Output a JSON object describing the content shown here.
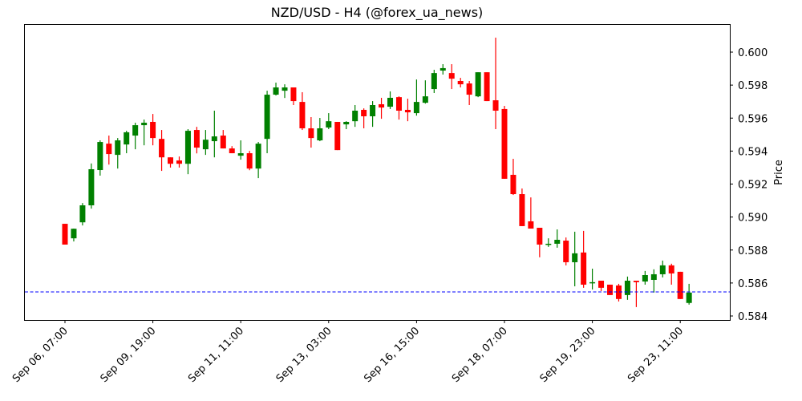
{
  "chart_data": {
    "type": "candlestick",
    "title": "NZD/USD - H4 (@forex_ua_news)",
    "xlabel": "",
    "ylabel": "Price",
    "ylim": [
      0.58368,
      0.60173
    ],
    "y_ticks": [
      "0.584",
      "0.586",
      "0.588",
      "0.590",
      "0.592",
      "0.594",
      "0.596",
      "0.598",
      "0.600"
    ],
    "x_ticks": [
      {
        "index": 0,
        "label": "Sep 06, 07:00"
      },
      {
        "index": 10,
        "label": "Sep 09, 19:00"
      },
      {
        "index": 20,
        "label": "Sep 11, 11:00"
      },
      {
        "index": 30,
        "label": "Sep 13, 03:00"
      },
      {
        "index": 40,
        "label": "Sep 16, 15:00"
      },
      {
        "index": 50,
        "label": "Sep 18, 07:00"
      },
      {
        "index": 60,
        "label": "Sep 19, 23:00"
      },
      {
        "index": 70,
        "label": "Sep 23, 11:00"
      }
    ],
    "grid": false,
    "legend": null,
    "up_color": "#008000",
    "down_color": "#ff0000",
    "hline": {
      "value": 0.58546,
      "color": "#0000ff",
      "style": "dashed"
    },
    "candles": [
      {
        "o": 0.58959,
        "h": 0.58959,
        "l": 0.58833,
        "c": 0.58833
      },
      {
        "o": 0.58871,
        "h": 0.5893,
        "l": 0.58852,
        "c": 0.58929
      },
      {
        "o": 0.58968,
        "h": 0.59085,
        "l": 0.58949,
        "c": 0.59071
      },
      {
        "o": 0.59071,
        "h": 0.59325,
        "l": 0.59051,
        "c": 0.5929
      },
      {
        "o": 0.59285,
        "h": 0.59465,
        "l": 0.59251,
        "c": 0.59455
      },
      {
        "o": 0.59445,
        "h": 0.59494,
        "l": 0.59318,
        "c": 0.59382
      },
      {
        "o": 0.59377,
        "h": 0.59479,
        "l": 0.59294,
        "c": 0.59465
      },
      {
        "o": 0.5944,
        "h": 0.59523,
        "l": 0.59387,
        "c": 0.59514
      },
      {
        "o": 0.59494,
        "h": 0.59572,
        "l": 0.59411,
        "c": 0.59557
      },
      {
        "o": 0.59557,
        "h": 0.59591,
        "l": 0.59435,
        "c": 0.59572
      },
      {
        "o": 0.59577,
        "h": 0.59625,
        "l": 0.59435,
        "c": 0.59479
      },
      {
        "o": 0.59474,
        "h": 0.59528,
        "l": 0.5928,
        "c": 0.59362
      },
      {
        "o": 0.59362,
        "h": 0.59362,
        "l": 0.593,
        "c": 0.59323
      },
      {
        "o": 0.59343,
        "h": 0.59367,
        "l": 0.593,
        "c": 0.59323
      },
      {
        "o": 0.59323,
        "h": 0.59533,
        "l": 0.5926,
        "c": 0.59523
      },
      {
        "o": 0.59528,
        "h": 0.59547,
        "l": 0.59386,
        "c": 0.59421
      },
      {
        "o": 0.59411,
        "h": 0.59528,
        "l": 0.59377,
        "c": 0.59469
      },
      {
        "o": 0.5946,
        "h": 0.59645,
        "l": 0.59362,
        "c": 0.59489
      },
      {
        "o": 0.59494,
        "h": 0.59528,
        "l": 0.59416,
        "c": 0.59416
      },
      {
        "o": 0.59416,
        "h": 0.5943,
        "l": 0.59387,
        "c": 0.59387
      },
      {
        "o": 0.59372,
        "h": 0.59465,
        "l": 0.59348,
        "c": 0.59387
      },
      {
        "o": 0.59387,
        "h": 0.59401,
        "l": 0.59284,
        "c": 0.59294
      },
      {
        "o": 0.59294,
        "h": 0.59455,
        "l": 0.59236,
        "c": 0.59445
      },
      {
        "o": 0.59474,
        "h": 0.59766,
        "l": 0.59387,
        "c": 0.59742
      },
      {
        "o": 0.59742,
        "h": 0.59815,
        "l": 0.59737,
        "c": 0.59786
      },
      {
        "o": 0.59766,
        "h": 0.59805,
        "l": 0.59722,
        "c": 0.59786
      },
      {
        "o": 0.59786,
        "h": 0.59786,
        "l": 0.59679,
        "c": 0.59703
      },
      {
        "o": 0.59698,
        "h": 0.59757,
        "l": 0.59528,
        "c": 0.59538
      },
      {
        "o": 0.59538,
        "h": 0.59606,
        "l": 0.59421,
        "c": 0.59479
      },
      {
        "o": 0.59465,
        "h": 0.59601,
        "l": 0.5946,
        "c": 0.59538
      },
      {
        "o": 0.59543,
        "h": 0.5963,
        "l": 0.59533,
        "c": 0.59581
      },
      {
        "o": 0.59577,
        "h": 0.59577,
        "l": 0.59406,
        "c": 0.59406
      },
      {
        "o": 0.59562,
        "h": 0.59581,
        "l": 0.59533,
        "c": 0.59577
      },
      {
        "o": 0.59581,
        "h": 0.59679,
        "l": 0.59547,
        "c": 0.59645
      },
      {
        "o": 0.5965,
        "h": 0.59659,
        "l": 0.59538,
        "c": 0.59611
      },
      {
        "o": 0.59611,
        "h": 0.59703,
        "l": 0.59547,
        "c": 0.59679
      },
      {
        "o": 0.59684,
        "h": 0.59723,
        "l": 0.59596,
        "c": 0.59664
      },
      {
        "o": 0.59669,
        "h": 0.59762,
        "l": 0.59655,
        "c": 0.59723
      },
      {
        "o": 0.59727,
        "h": 0.59732,
        "l": 0.59591,
        "c": 0.59645
      },
      {
        "o": 0.5965,
        "h": 0.59718,
        "l": 0.59581,
        "c": 0.59635
      },
      {
        "o": 0.5963,
        "h": 0.59834,
        "l": 0.59615,
        "c": 0.59698
      },
      {
        "o": 0.59693,
        "h": 0.59829,
        "l": 0.59688,
        "c": 0.59732
      },
      {
        "o": 0.59776,
        "h": 0.59893,
        "l": 0.59752,
        "c": 0.59873
      },
      {
        "o": 0.59888,
        "h": 0.59927,
        "l": 0.59864,
        "c": 0.59903
      },
      {
        "o": 0.59873,
        "h": 0.59927,
        "l": 0.59776,
        "c": 0.59839
      },
      {
        "o": 0.59825,
        "h": 0.59844,
        "l": 0.59786,
        "c": 0.59805
      },
      {
        "o": 0.5981,
        "h": 0.59825,
        "l": 0.59679,
        "c": 0.59742
      },
      {
        "o": 0.59732,
        "h": 0.59878,
        "l": 0.59727,
        "c": 0.59878
      },
      {
        "o": 0.59878,
        "h": 0.59878,
        "l": 0.59703,
        "c": 0.59703
      },
      {
        "o": 0.59708,
        "h": 0.60088,
        "l": 0.59533,
        "c": 0.59645
      },
      {
        "o": 0.59655,
        "h": 0.59674,
        "l": 0.59232,
        "c": 0.59232
      },
      {
        "o": 0.59256,
        "h": 0.59353,
        "l": 0.59134,
        "c": 0.59139
      },
      {
        "o": 0.59139,
        "h": 0.59173,
        "l": 0.58945,
        "c": 0.58945
      },
      {
        "o": 0.58974,
        "h": 0.59119,
        "l": 0.5893,
        "c": 0.5893
      },
      {
        "o": 0.58935,
        "h": 0.58935,
        "l": 0.58756,
        "c": 0.58833
      },
      {
        "o": 0.58838,
        "h": 0.58871,
        "l": 0.58819,
        "c": 0.58838
      },
      {
        "o": 0.58838,
        "h": 0.58925,
        "l": 0.58814,
        "c": 0.58862
      },
      {
        "o": 0.58857,
        "h": 0.58876,
        "l": 0.58707,
        "c": 0.58726
      },
      {
        "o": 0.58726,
        "h": 0.58911,
        "l": 0.5858,
        "c": 0.5878
      },
      {
        "o": 0.58785,
        "h": 0.58916,
        "l": 0.58571,
        "c": 0.5859
      },
      {
        "o": 0.586,
        "h": 0.58687,
        "l": 0.58561,
        "c": 0.58605
      },
      {
        "o": 0.58614,
        "h": 0.58614,
        "l": 0.58551,
        "c": 0.58571
      },
      {
        "o": 0.5859,
        "h": 0.5859,
        "l": 0.58527,
        "c": 0.58527
      },
      {
        "o": 0.58585,
        "h": 0.58595,
        "l": 0.58488,
        "c": 0.58503
      },
      {
        "o": 0.58527,
        "h": 0.58639,
        "l": 0.58498,
        "c": 0.58614
      },
      {
        "o": 0.58614,
        "h": 0.58614,
        "l": 0.58454,
        "c": 0.58605
      },
      {
        "o": 0.58609,
        "h": 0.58673,
        "l": 0.5859,
        "c": 0.58648
      },
      {
        "o": 0.58619,
        "h": 0.58683,
        "l": 0.58542,
        "c": 0.58653
      },
      {
        "o": 0.58653,
        "h": 0.58736,
        "l": 0.58634,
        "c": 0.58707
      },
      {
        "o": 0.58707,
        "h": 0.58717,
        "l": 0.5859,
        "c": 0.58658
      },
      {
        "o": 0.58668,
        "h": 0.58668,
        "l": 0.58503,
        "c": 0.58503
      },
      {
        "o": 0.58479,
        "h": 0.58595,
        "l": 0.58469,
        "c": 0.58542
      }
    ]
  }
}
